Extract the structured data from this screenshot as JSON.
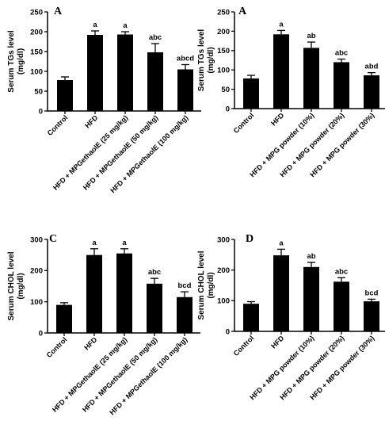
{
  "chart_data": [
    {
      "type": "bar",
      "panel_letter": "A",
      "ylabel_line1": "Serum TGs level",
      "ylabel_line2": "(mg/dl)",
      "ylim": [
        0,
        250
      ],
      "yticks": [
        0,
        50,
        100,
        150,
        200,
        250
      ],
      "categories": [
        "Control",
        "HFD",
        "HFD + MPGethaolE (25 mg/kg)",
        "HFD + MPGethaolE (50 mg/kg)",
        "HFD + MPGethaolE (100 mg/kg)"
      ],
      "values": [
        78,
        192,
        193,
        148,
        105
      ],
      "errors": [
        8,
        10,
        7,
        22,
        12
      ],
      "significance": [
        "",
        "a",
        "a",
        "abc",
        "abcd"
      ],
      "bar_color": "#000000"
    },
    {
      "type": "bar",
      "panel_letter": "A",
      "ylabel_line1": "Serum TGs level",
      "ylabel_line2": "(mg/dl)",
      "ylim": [
        0,
        250
      ],
      "yticks": [
        0,
        50,
        100,
        150,
        200,
        250
      ],
      "categories": [
        "Control",
        "HFD",
        "HFD + MPG powder (10%)",
        "HFD + MPG powder (20%)",
        "HFD + MPG powder (30%)"
      ],
      "values": [
        78,
        192,
        157,
        120,
        86
      ],
      "errors": [
        8,
        10,
        15,
        8,
        7
      ],
      "significance": [
        "",
        "a",
        "ab",
        "abc",
        "abd"
      ],
      "bar_color": "#000000"
    },
    {
      "type": "bar",
      "panel_letter": "C",
      "ylabel_line1": "Serum CHOL level",
      "ylabel_line2": "(mg/dl)",
      "ylim": [
        0,
        300
      ],
      "yticks": [
        0,
        100,
        200,
        300
      ],
      "categories": [
        "Control",
        "HFD",
        "HFD + MPGethaolE (25 mg/kg)",
        "HFD + MPGethaolE (50 mg/kg)",
        "HFD + MPGethaolE (100 mg/kg)"
      ],
      "values": [
        90,
        250,
        255,
        158,
        115
      ],
      "errors": [
        7,
        20,
        15,
        17,
        17
      ],
      "significance": [
        "",
        "a",
        "a",
        "abc",
        "bcd"
      ],
      "bar_color": "#000000"
    },
    {
      "type": "bar",
      "panel_letter": "D",
      "ylabel_line1": "Serum CHOL level",
      "ylabel_line2": "(mg/dl)",
      "ylim": [
        0,
        300
      ],
      "yticks": [
        0,
        100,
        200,
        300
      ],
      "categories": [
        "Control",
        "HFD",
        "HFD + MPG powder (10%)",
        "HFD + MPG powder (20%)",
        "HFD + MPG powder (30%)"
      ],
      "values": [
        90,
        248,
        210,
        162,
        98
      ],
      "errors": [
        7,
        20,
        15,
        13,
        7
      ],
      "significance": [
        "",
        "a",
        "ab",
        "abc",
        "bcd"
      ],
      "bar_color": "#000000"
    }
  ]
}
